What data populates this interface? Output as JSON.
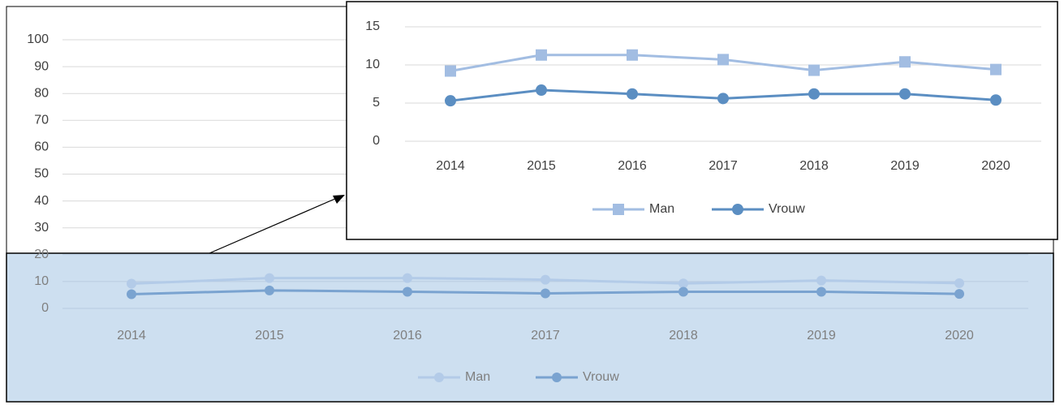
{
  "chart_data": [
    {
      "type": "line",
      "categories": [
        "2014",
        "2015",
        "2016",
        "2017",
        "2018",
        "2019",
        "2020"
      ],
      "ylim": [
        0,
        100
      ],
      "yticks": [
        0,
        10,
        20,
        30,
        40,
        50,
        60,
        70,
        80,
        90,
        100
      ],
      "grid": true,
      "legend": "bottom",
      "series": [
        {
          "name": "Man",
          "color": "#b3cbe8",
          "marker": "circle",
          "values": [
            9.2,
            11.3,
            11.3,
            10.7,
            9.3,
            10.4,
            9.4
          ]
        },
        {
          "name": "Vrouw",
          "color": "#7aa3d0",
          "marker": "circle",
          "values": [
            5.3,
            6.7,
            6.2,
            5.6,
            6.2,
            6.2,
            5.4
          ]
        }
      ]
    },
    {
      "type": "line",
      "categories": [
        "2014",
        "2015",
        "2016",
        "2017",
        "2018",
        "2019",
        "2020"
      ],
      "ylim": [
        0,
        15
      ],
      "yticks": [
        0,
        5,
        10,
        15
      ],
      "grid": true,
      "legend": "bottom",
      "series": [
        {
          "name": "Man",
          "color": "#a2bde2",
          "marker": "square",
          "values": [
            9.2,
            11.3,
            11.3,
            10.7,
            9.3,
            10.4,
            9.4
          ]
        },
        {
          "name": "Vrouw",
          "color": "#5b8ec2",
          "marker": "circle",
          "values": [
            5.3,
            6.7,
            6.2,
            5.6,
            6.2,
            6.2,
            5.4
          ]
        }
      ]
    }
  ]
}
